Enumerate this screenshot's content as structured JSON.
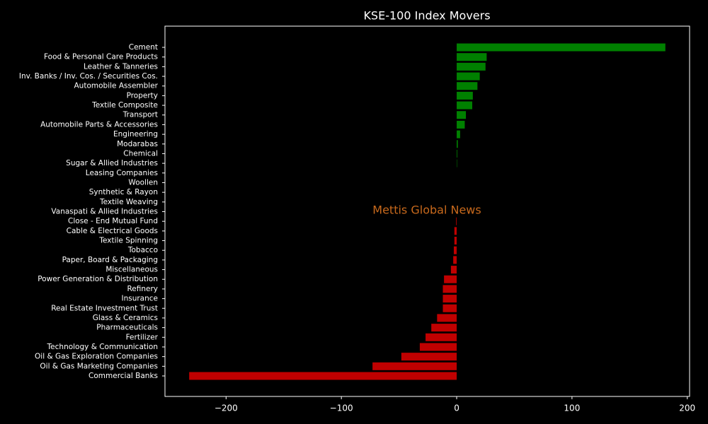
{
  "chart_data": {
    "type": "barh",
    "title": "KSE-100 Index Movers",
    "watermark": "Mettis Global News",
    "categories": [
      "Cement",
      "Food & Personal Care Products",
      "Leather & Tanneries",
      "Inv. Banks / Inv. Cos. / Securities Cos.",
      "Automobile Assembler",
      "Property",
      "Textile Composite",
      "Transport",
      "Automobile Parts & Accessories",
      "Engineering",
      "Modarabas",
      "Chemical",
      "Sugar & Allied Industries",
      "Leasing Companies",
      "Woollen",
      "Synthetic & Rayon",
      "Textile Weaving",
      "Vanaspati & Allied Industries",
      "Close - End Mutual Fund",
      "Cable & Electrical Goods",
      "Textile Spinning",
      "Tobacco",
      "Paper, Board & Packaging",
      "Miscellaneous",
      "Power Generation & Distribution",
      "Refinery",
      "Insurance",
      "Real Estate Investment Trust",
      "Glass & Ceramics",
      "Pharmaceuticals",
      "Fertilizer",
      "Technology & Communication",
      "Oil & Gas Exploration Companies",
      "Oil & Gas Marketing Companies",
      "Commercial Banks"
    ],
    "values": [
      181,
      26,
      25,
      20,
      18,
      14,
      13.5,
      8,
      7,
      3,
      1,
      0.5,
      0.3,
      0,
      0,
      0,
      0,
      0,
      -0.5,
      -2,
      -2,
      -2.5,
      -3,
      -5,
      -11,
      -12,
      -12,
      -12,
      -17,
      -22,
      -27,
      -32,
      -48,
      -73,
      -232
    ],
    "color_positive": "#008000",
    "color_negative": "#c00000",
    "xlim": [
      -253,
      202
    ],
    "xticks": [
      {
        "value": -200,
        "label": "−200"
      },
      {
        "value": -100,
        "label": "−100"
      },
      0,
      100,
      200
    ]
  }
}
